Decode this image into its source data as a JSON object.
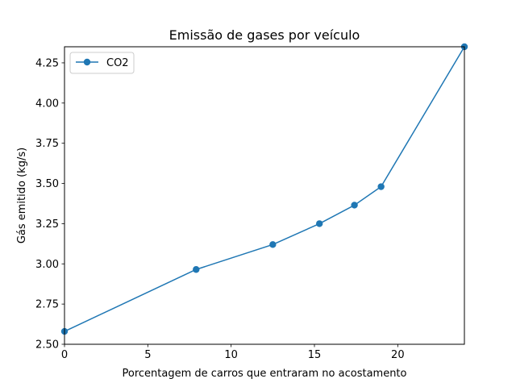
{
  "chart_data": {
    "type": "line",
    "title": "Emissão de gases por veículo",
    "xlabel": "Porcentagem de carros que entraram no acostamento",
    "ylabel": "Gás emitido (kg/s)",
    "xlim": [
      0,
      24
    ],
    "ylim": [
      2.5,
      4.35
    ],
    "xticks": [
      0,
      5,
      10,
      15,
      20
    ],
    "xtick_labels": [
      "0",
      "5",
      "10",
      "15",
      "20"
    ],
    "yticks": [
      2.5,
      2.75,
      3.0,
      3.25,
      3.5,
      3.75,
      4.0,
      4.25
    ],
    "ytick_labels": [
      "2.50",
      "2.75",
      "3.00",
      "3.25",
      "3.50",
      "3.75",
      "4.00",
      "4.25"
    ],
    "grid": false,
    "legend_position": "top-left",
    "series": [
      {
        "name": "CO2",
        "color": "#1f77b4",
        "marker": "circle",
        "x": [
          0,
          7.9,
          12.5,
          15.3,
          17.4,
          19.0,
          24.0
        ],
        "y": [
          2.58,
          2.965,
          3.12,
          3.25,
          3.365,
          3.48,
          4.35
        ]
      }
    ]
  }
}
